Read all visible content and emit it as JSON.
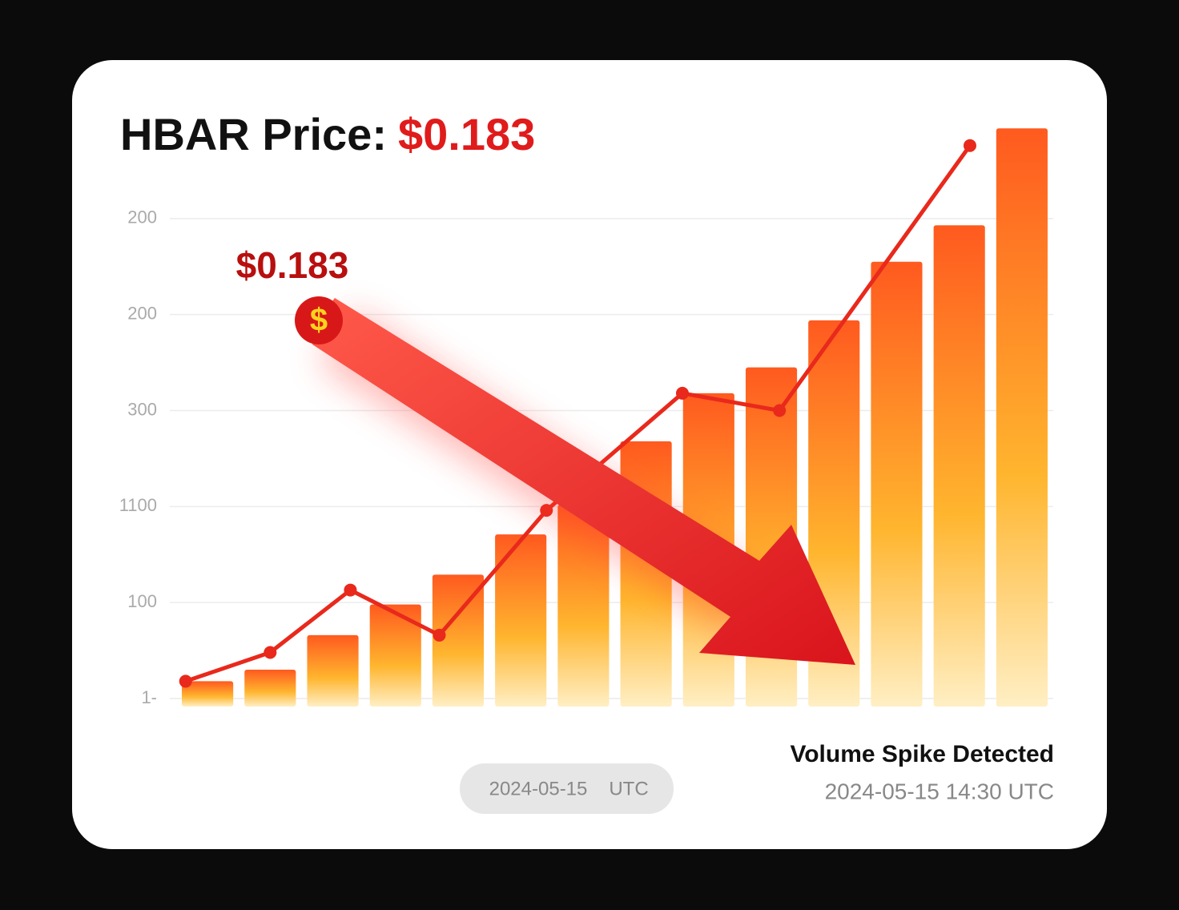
{
  "chart_data": {
    "type": "bar",
    "title": "HBAR Price:",
    "title_value": "$0.183",
    "annotation": "$0.183",
    "marker_symbol": "$",
    "categories": [
      null,
      null,
      null,
      null,
      null,
      null,
      null,
      null,
      null,
      null,
      null,
      null,
      null,
      null
    ],
    "xlim": [
      -0.5,
      13.5
    ],
    "ylim": [
      0,
      6
    ],
    "yticks": [
      {
        "value": 0,
        "label": "1-"
      },
      {
        "value": 1,
        "label": "100"
      },
      {
        "value": 2,
        "label": "1100"
      },
      {
        "value": 3,
        "label": "300"
      },
      {
        "value": 4,
        "label": "200"
      },
      {
        "value": 5,
        "label": "200"
      }
    ],
    "grid": true,
    "series": [
      {
        "type": "bar",
        "color": "#ff5a1f",
        "values": [
          0.18,
          0.3,
          0.66,
          0.98,
          1.29,
          1.71,
          2.02,
          2.68,
          3.18,
          3.45,
          3.94,
          4.55,
          4.93,
          5.94
        ]
      },
      {
        "type": "line",
        "color": "#e8291c",
        "x": [
          -0.35,
          1.0,
          2.28,
          3.7,
          5.41,
          7.58,
          9.13,
          12.17
        ],
        "values": [
          0.18,
          0.48,
          1.13,
          0.66,
          1.96,
          3.18,
          3.0,
          5.76
        ]
      }
    ],
    "footer": {
      "badge_date": "2024-05-15",
      "badge_zone": "UTC",
      "heading": "Volume Spike Detected",
      "timestamp": "2024-05-15 14:30 UTC"
    }
  }
}
